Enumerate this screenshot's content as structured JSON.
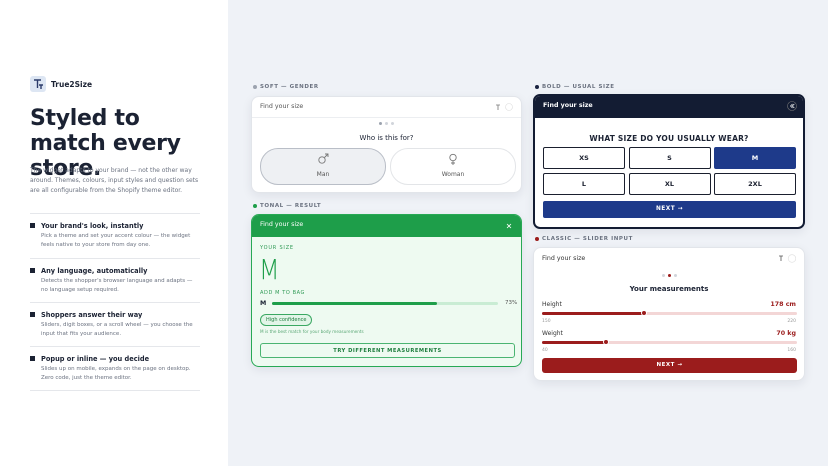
{
  "brand": {
    "name": "True2Size"
  },
  "hero": {
    "title": "Styled to match every store.",
    "intro": "The widget adapts to your brand — not the other way around. Themes, colours, input styles and question sets are all configurable from the Shopify theme editor."
  },
  "features": [
    {
      "title": "Your brand's look, instantly",
      "text": "Pick a theme and set your accent colour — the widget feels native to your store from day one."
    },
    {
      "title": "Any language, automatically",
      "text": "Detects the shopper's browser language and adapts — no language setup required."
    },
    {
      "title": "Shoppers answer their way",
      "text": "Sliders, digit boxes, or a scroll wheel — you choose the input that fits your audience."
    },
    {
      "title": "Popup or inline — you decide",
      "text": "Slides up on mobile, expands on the page on desktop. Zero code, just the theme editor."
    }
  ],
  "widgets": {
    "soft": {
      "label": "SOFT — GENDER",
      "header": "Find your size",
      "question": "Who is this for?",
      "options": [
        "Man",
        "Woman"
      ]
    },
    "tonal": {
      "label": "TONAL — RESULT",
      "header": "Find your size",
      "size_caption": "YOUR SIZE",
      "size": "M",
      "add_to_bag": "ADD M TO BAG",
      "match": {
        "size": "M",
        "value": 73,
        "value_label": "73%"
      },
      "confidence": "High confidence",
      "note": "M is the best match for your body measurements",
      "button": "TRY DIFFERENT MEASUREMENTS"
    },
    "bold": {
      "label": "BOLD — USUAL SIZE",
      "header": "Find your size",
      "question": "WHAT SIZE DO YOU USUALLY WEAR?",
      "options": [
        "XS",
        "S",
        "M",
        "L",
        "XL",
        "2XL"
      ],
      "selected": 2,
      "button": "NEXT →"
    },
    "classic": {
      "label": "CLASSIC — SLIDER INPUT",
      "header": "Find your size",
      "title": "Your measurements",
      "sliders": [
        {
          "label": "Height",
          "value": 178,
          "value_label": "178 cm",
          "min": 150,
          "max": 220
        },
        {
          "label": "Weight",
          "value": 70,
          "value_label": "70 kg",
          "min": 40,
          "max": 160
        }
      ],
      "button": "NEXT →"
    }
  }
}
